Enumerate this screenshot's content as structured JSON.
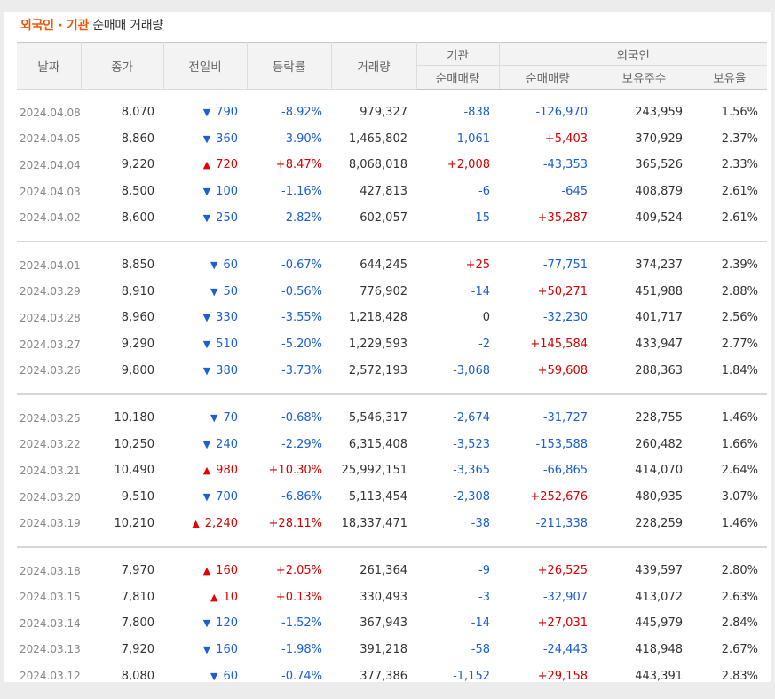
{
  "caption": {
    "accent": "외국인 · 기관",
    "rest": " 순매매 거래량"
  },
  "headers": {
    "date": "날짜",
    "close": "종가",
    "change": "전일비",
    "rate": "등락률",
    "volume": "거래량",
    "institution": "기관",
    "foreign": "외국인",
    "inst_net": "순매매량",
    "foreign_net": "순매매량",
    "holdings": "보유주수",
    "ratio": "보유율"
  },
  "groups": [
    [
      {
        "date": "2024.04.08",
        "close": "8,070",
        "dir": "down",
        "change": "790",
        "rate": "-8.92%",
        "volume": "979,327",
        "inst": "-838",
        "foreign": "-126,970",
        "holdings": "243,959",
        "ratio": "1.56%"
      },
      {
        "date": "2024.04.05",
        "close": "8,860",
        "dir": "down",
        "change": "360",
        "rate": "-3.90%",
        "volume": "1,465,802",
        "inst": "-1,061",
        "foreign": "+5,403",
        "holdings": "370,929",
        "ratio": "2.37%"
      },
      {
        "date": "2024.04.04",
        "close": "9,220",
        "dir": "up",
        "change": "720",
        "rate": "+8.47%",
        "volume": "8,068,018",
        "inst": "+2,008",
        "foreign": "-43,353",
        "holdings": "365,526",
        "ratio": "2.33%"
      },
      {
        "date": "2024.04.03",
        "close": "8,500",
        "dir": "down",
        "change": "100",
        "rate": "-1.16%",
        "volume": "427,813",
        "inst": "-6",
        "foreign": "-645",
        "holdings": "408,879",
        "ratio": "2.61%"
      },
      {
        "date": "2024.04.02",
        "close": "8,600",
        "dir": "down",
        "change": "250",
        "rate": "-2.82%",
        "volume": "602,057",
        "inst": "-15",
        "foreign": "+35,287",
        "holdings": "409,524",
        "ratio": "2.61%"
      }
    ],
    [
      {
        "date": "2024.04.01",
        "close": "8,850",
        "dir": "down",
        "change": "60",
        "rate": "-0.67%",
        "volume": "644,245",
        "inst": "+25",
        "foreign": "-77,751",
        "holdings": "374,237",
        "ratio": "2.39%"
      },
      {
        "date": "2024.03.29",
        "close": "8,910",
        "dir": "down",
        "change": "50",
        "rate": "-0.56%",
        "volume": "776,902",
        "inst": "-14",
        "foreign": "+50,271",
        "holdings": "451,988",
        "ratio": "2.88%"
      },
      {
        "date": "2024.03.28",
        "close": "8,960",
        "dir": "down",
        "change": "330",
        "rate": "-3.55%",
        "volume": "1,218,428",
        "inst": "0",
        "foreign": "-32,230",
        "holdings": "401,717",
        "ratio": "2.56%"
      },
      {
        "date": "2024.03.27",
        "close": "9,290",
        "dir": "down",
        "change": "510",
        "rate": "-5.20%",
        "volume": "1,229,593",
        "inst": "-2",
        "foreign": "+145,584",
        "holdings": "433,947",
        "ratio": "2.77%"
      },
      {
        "date": "2024.03.26",
        "close": "9,800",
        "dir": "down",
        "change": "380",
        "rate": "-3.73%",
        "volume": "2,572,193",
        "inst": "-3,068",
        "foreign": "+59,608",
        "holdings": "288,363",
        "ratio": "1.84%"
      }
    ],
    [
      {
        "date": "2024.03.25",
        "close": "10,180",
        "dir": "down",
        "change": "70",
        "rate": "-0.68%",
        "volume": "5,546,317",
        "inst": "-2,674",
        "foreign": "-31,727",
        "holdings": "228,755",
        "ratio": "1.46%"
      },
      {
        "date": "2024.03.22",
        "close": "10,250",
        "dir": "down",
        "change": "240",
        "rate": "-2.29%",
        "volume": "6,315,408",
        "inst": "-3,523",
        "foreign": "-153,588",
        "holdings": "260,482",
        "ratio": "1.66%"
      },
      {
        "date": "2024.03.21",
        "close": "10,490",
        "dir": "up",
        "change": "980",
        "rate": "+10.30%",
        "volume": "25,992,151",
        "inst": "-3,365",
        "foreign": "-66,865",
        "holdings": "414,070",
        "ratio": "2.64%"
      },
      {
        "date": "2024.03.20",
        "close": "9,510",
        "dir": "down",
        "change": "700",
        "rate": "-6.86%",
        "volume": "5,113,454",
        "inst": "-2,308",
        "foreign": "+252,676",
        "holdings": "480,935",
        "ratio": "3.07%"
      },
      {
        "date": "2024.03.19",
        "close": "10,210",
        "dir": "up",
        "change": "2,240",
        "rate": "+28.11%",
        "volume": "18,337,471",
        "inst": "-38",
        "foreign": "-211,338",
        "holdings": "228,259",
        "ratio": "1.46%"
      }
    ],
    [
      {
        "date": "2024.03.18",
        "close": "7,970",
        "dir": "up",
        "change": "160",
        "rate": "+2.05%",
        "volume": "261,364",
        "inst": "-9",
        "foreign": "+26,525",
        "holdings": "439,597",
        "ratio": "2.80%"
      },
      {
        "date": "2024.03.15",
        "close": "7,810",
        "dir": "up",
        "change": "10",
        "rate": "+0.13%",
        "volume": "330,493",
        "inst": "-3",
        "foreign": "-32,907",
        "holdings": "413,072",
        "ratio": "2.63%"
      },
      {
        "date": "2024.03.14",
        "close": "7,800",
        "dir": "down",
        "change": "120",
        "rate": "-1.52%",
        "volume": "367,943",
        "inst": "-14",
        "foreign": "+27,031",
        "holdings": "445,979",
        "ratio": "2.84%"
      },
      {
        "date": "2024.03.13",
        "close": "7,920",
        "dir": "down",
        "change": "160",
        "rate": "-1.98%",
        "volume": "391,218",
        "inst": "-58",
        "foreign": "-24,443",
        "holdings": "418,948",
        "ratio": "2.67%"
      },
      {
        "date": "2024.03.12",
        "close": "8,080",
        "dir": "down",
        "change": "60",
        "rate": "-0.74%",
        "volume": "377,386",
        "inst": "-1,152",
        "foreign": "+29,158",
        "holdings": "443,391",
        "ratio": "2.83%"
      }
    ]
  ],
  "colors": {
    "up": "#e60000",
    "down": "#1a5fd3",
    "accent": "#e8590c"
  },
  "icons": {
    "up": "triangle-up-icon",
    "down": "triangle-down-icon"
  }
}
